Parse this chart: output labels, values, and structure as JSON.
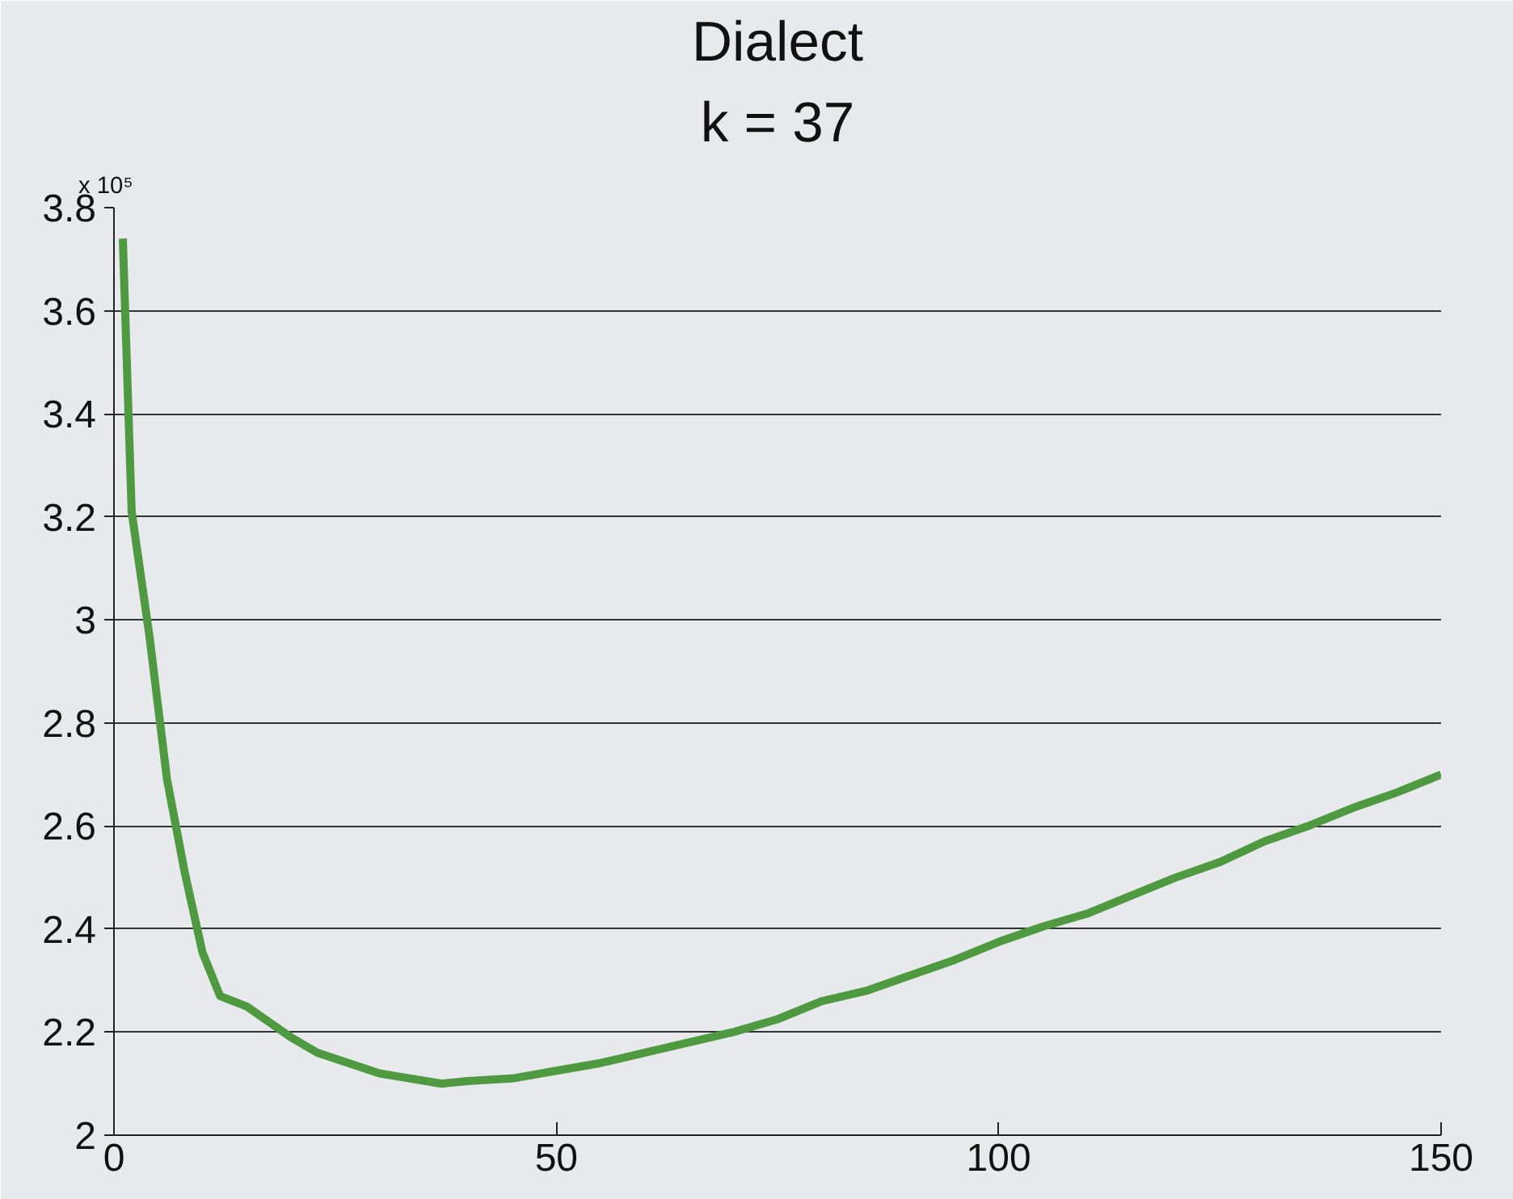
{
  "chart_data": {
    "type": "line",
    "title": "Dialect",
    "subtitle": "k = 37",
    "annotations": [
      "x 10⁵"
    ],
    "x": [
      1,
      2,
      4,
      6,
      8,
      10,
      12,
      15,
      20,
      23,
      30,
      37,
      40,
      45,
      50,
      55,
      60,
      65,
      70,
      75,
      80,
      85,
      90,
      95,
      100,
      105,
      110,
      115,
      120,
      125,
      130,
      135,
      140,
      145,
      150
    ],
    "series": [
      {
        "color": "#4f9a40",
        "values": [
          3.74,
          3.21,
          2.97,
          2.69,
          2.51,
          2.355,
          2.27,
          2.25,
          2.19,
          2.16,
          2.12,
          2.1,
          2.105,
          2.11,
          2.125,
          2.14,
          2.16,
          2.18,
          2.2,
          2.225,
          2.26,
          2.28,
          2.31,
          2.34,
          2.375,
          2.405,
          2.43,
          2.465,
          2.5,
          2.53,
          2.57,
          2.6,
          2.635,
          2.665,
          2.7
        ]
      }
    ],
    "xlim": [
      0,
      150
    ],
    "ylim": [
      2,
      3.8
    ],
    "xticks": [
      0,
      50,
      100,
      150
    ],
    "yticks": [
      2,
      2.2,
      2.4,
      2.6,
      2.8,
      3,
      3.2,
      3.4,
      3.6,
      3.8
    ],
    "grid": "y",
    "marker": "none",
    "line_style": "solid"
  }
}
